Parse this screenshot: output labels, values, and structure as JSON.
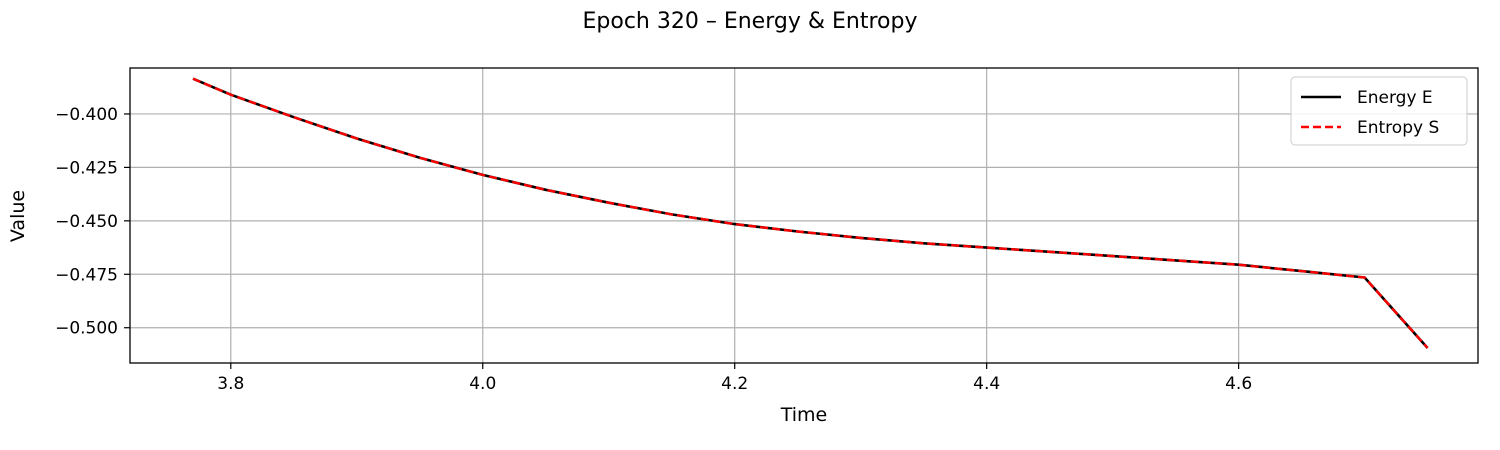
{
  "figure": {
    "title": "Epoch 320 – Energy & Entropy"
  },
  "chart_data": {
    "type": "line",
    "title": "Epoch 320 – Energy & Entropy",
    "xlabel": "Time",
    "ylabel": "Value",
    "xlim": [
      3.72,
      4.79
    ],
    "ylim": [
      -0.5165,
      -0.3785
    ],
    "xticks": [
      3.8,
      4.0,
      4.2,
      4.4,
      4.6
    ],
    "xtick_labels": [
      "3.8",
      "4.0",
      "4.2",
      "4.4",
      "4.6"
    ],
    "yticks": [
      -0.4,
      -0.425,
      -0.45,
      -0.475,
      -0.5
    ],
    "ytick_labels": [
      "−0.400",
      "−0.425",
      "−0.450",
      "−0.475",
      "−0.500"
    ],
    "grid": true,
    "legend_position": "top-right",
    "series": [
      {
        "name": "Energy E",
        "color": "#000000",
        "style": "solid",
        "x": [
          3.77,
          3.8,
          3.85,
          3.9,
          3.95,
          4.0,
          4.05,
          4.1,
          4.15,
          4.2,
          4.25,
          4.3,
          4.35,
          4.4,
          4.45,
          4.5,
          4.55,
          4.6,
          4.65,
          4.7,
          4.75
        ],
        "values": [
          -0.3835,
          -0.391,
          -0.4015,
          -0.4115,
          -0.4205,
          -0.4285,
          -0.4355,
          -0.4415,
          -0.447,
          -0.4515,
          -0.455,
          -0.458,
          -0.4605,
          -0.4625,
          -0.4645,
          -0.4665,
          -0.4685,
          -0.4705,
          -0.4735,
          -0.4765,
          -0.5095
        ]
      },
      {
        "name": "Entropy S",
        "color": "#ff0000",
        "style": "dashed",
        "x": [
          3.77,
          3.8,
          3.85,
          3.9,
          3.95,
          4.0,
          4.05,
          4.1,
          4.15,
          4.2,
          4.25,
          4.3,
          4.35,
          4.4,
          4.45,
          4.5,
          4.55,
          4.6,
          4.65,
          4.7,
          4.75
        ],
        "values": [
          -0.3835,
          -0.391,
          -0.4015,
          -0.4115,
          -0.4205,
          -0.4285,
          -0.4355,
          -0.4415,
          -0.447,
          -0.4515,
          -0.455,
          -0.458,
          -0.4605,
          -0.4625,
          -0.4645,
          -0.4665,
          -0.4685,
          -0.4705,
          -0.4735,
          -0.4765,
          -0.5095
        ]
      }
    ]
  }
}
